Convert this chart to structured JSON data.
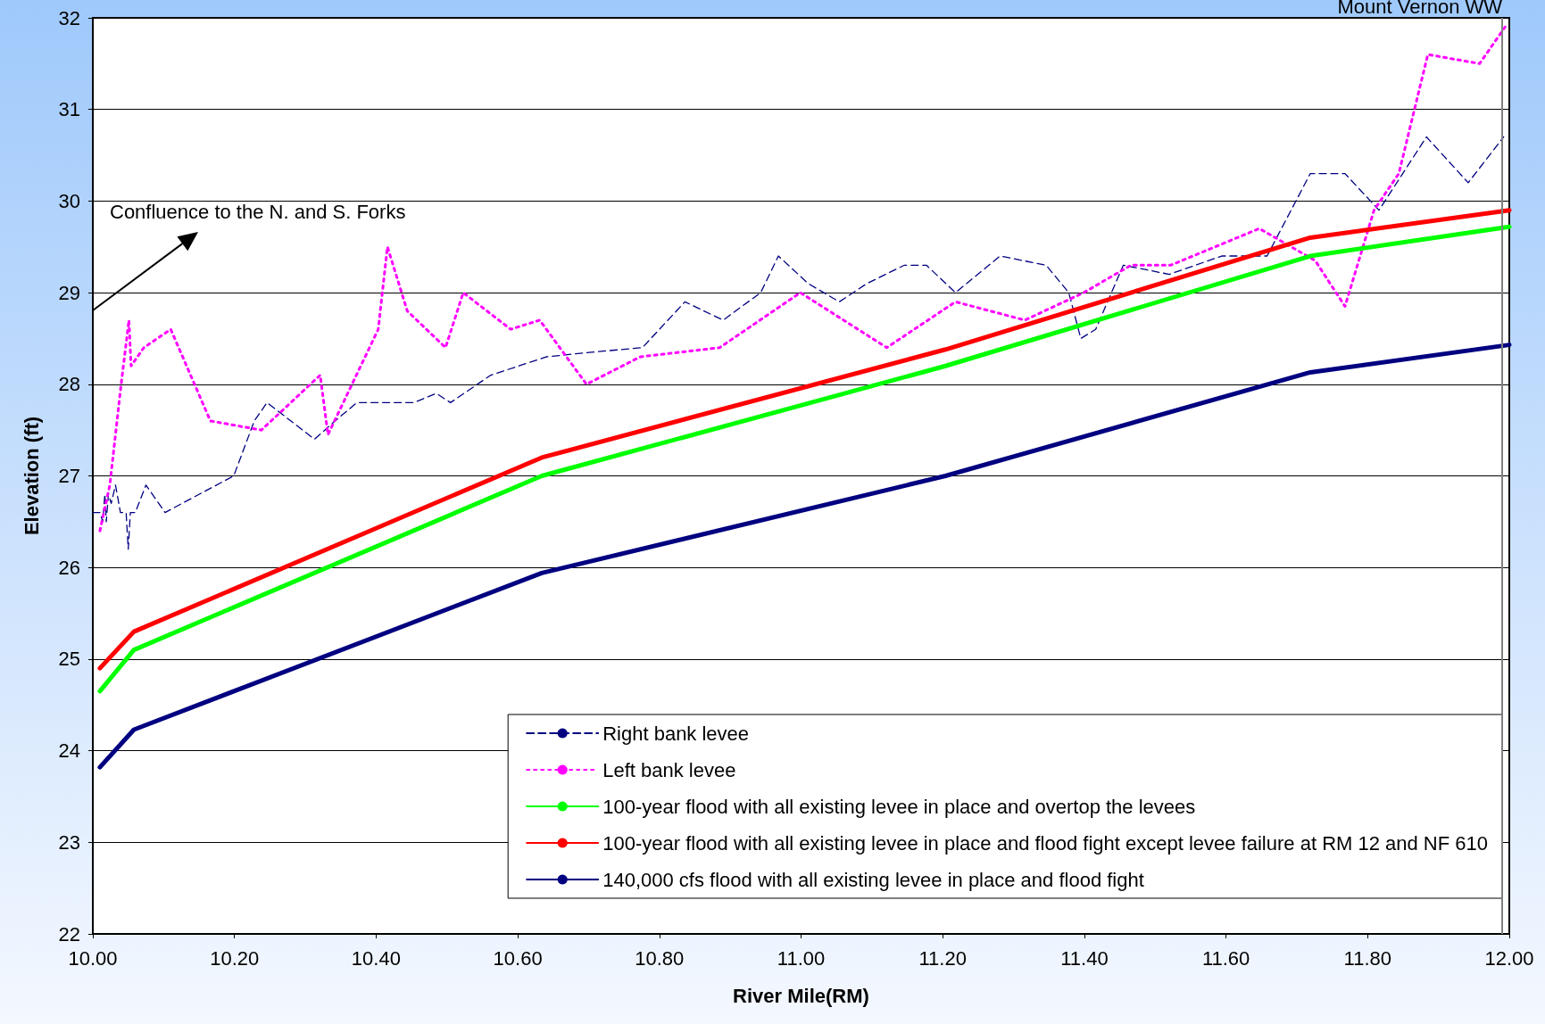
{
  "chart_data": {
    "type": "line",
    "xlabel": "River Mile(RM)",
    "ylabel": "Elevation (ft)",
    "xlim": [
      10,
      12
    ],
    "xticks": [
      {
        "value": 10,
        "label": "10.00"
      },
      {
        "value": 10.2,
        "label": "10.20"
      },
      {
        "value": 10.4,
        "label": "10.40"
      },
      {
        "value": 10.6,
        "label": "10.60"
      },
      {
        "value": 10.8,
        "label": "10.80"
      },
      {
        "value": 11,
        "label": "11.00"
      },
      {
        "value": 11.2,
        "label": "11.20"
      },
      {
        "value": 11.4,
        "label": "11.40"
      },
      {
        "value": 11.6,
        "label": "11.60"
      },
      {
        "value": 11.8,
        "label": "11.80"
      },
      {
        "value": 12,
        "label": "12.00"
      }
    ],
    "ylim": [
      22,
      32
    ],
    "yticks": [
      22,
      23,
      24,
      25,
      26,
      27,
      28,
      29,
      30,
      31,
      32
    ],
    "grid": "y",
    "legend": "bottom right",
    "marker": "none",
    "annotations": [
      "Confluence to the N. and S. Forks"
    ],
    "ref_lines": [
      {
        "axis": "x",
        "value": 11.99,
        "label": "Mount Vernon WW",
        "color": "#808080"
      }
    ],
    "series": [
      {
        "name": "Right bank levee",
        "color": "#000080",
        "line_style": "dashed",
        "x": [
          10.0,
          10.01,
          10.014,
          10.017,
          10.019,
          10.022,
          10.026,
          10.032,
          10.039,
          10.047,
          10.05,
          10.053,
          10.06,
          10.075,
          10.102,
          10.199,
          10.228,
          10.246,
          10.313,
          10.342,
          10.373,
          10.453,
          10.485,
          10.505,
          10.562,
          10.641,
          10.704,
          10.776,
          10.836,
          10.89,
          10.943,
          10.968,
          11.01,
          11.054,
          11.093,
          11.146,
          11.177,
          11.218,
          11.281,
          11.346,
          11.378,
          11.395,
          11.416,
          11.455,
          11.52,
          11.594,
          11.658,
          11.719,
          11.768,
          11.816,
          11.883,
          11.942,
          11.992
        ],
        "values": [
          26.6,
          26.6,
          26.5,
          26.8,
          26.5,
          26.8,
          26.7,
          26.9,
          26.6,
          26.6,
          26.2,
          26.6,
          26.6,
          26.9,
          26.6,
          27.0,
          27.6,
          27.8,
          27.4,
          27.6,
          27.8,
          27.8,
          27.9,
          27.8,
          28.1,
          28.3,
          28.35,
          28.4,
          28.9,
          28.7,
          29.0,
          29.4,
          29.1,
          28.9,
          29.1,
          29.3,
          29.3,
          29.0,
          29.4,
          29.3,
          29.0,
          28.5,
          28.6,
          29.3,
          29.2,
          29.4,
          29.4,
          30.3,
          30.3,
          29.9,
          30.7,
          30.2,
          30.7
        ]
      },
      {
        "name": "Left bank levee",
        "color": "#ff00ff",
        "line_style": "dotted",
        "x": [
          10.01,
          10.024,
          10.04,
          10.051,
          10.054,
          10.072,
          10.11,
          10.166,
          10.238,
          10.321,
          10.332,
          10.403,
          10.416,
          10.444,
          10.498,
          10.523,
          10.59,
          10.631,
          10.697,
          10.773,
          10.885,
          10.999,
          11.121,
          11.218,
          11.316,
          11.399,
          11.466,
          11.522,
          11.647,
          11.726,
          11.768,
          11.809,
          11.844,
          11.885,
          11.958,
          11.994
        ],
        "values": [
          26.4,
          26.9,
          28.0,
          28.7,
          28.2,
          28.4,
          28.6,
          27.6,
          27.5,
          28.1,
          27.45,
          28.6,
          29.5,
          28.8,
          28.4,
          29.0,
          28.6,
          28.7,
          28.0,
          28.3,
          28.4,
          29.0,
          28.4,
          28.9,
          28.7,
          29.0,
          29.3,
          29.3,
          29.7,
          29.35,
          28.85,
          29.9,
          30.3,
          31.6,
          31.5,
          31.9
        ]
      },
      {
        "name": "100-year flood with all existing levee in place and overtop the levees",
        "color": "#00ff00",
        "line_style": "solid",
        "x": [
          10.01,
          10.058,
          10.634,
          11.204,
          11.719,
          12.0
        ],
        "values": [
          24.65,
          25.1,
          27.0,
          28.2,
          29.4,
          29.72
        ]
      },
      {
        "name": "100-year flood with all existing levee in place and flood fight except levee failure at RM 12 and NF 610",
        "color": "#ff0000",
        "line_style": "solid",
        "x": [
          10.01,
          10.058,
          10.634,
          11.204,
          11.719,
          12.0
        ],
        "values": [
          24.9,
          25.3,
          27.2,
          28.38,
          29.6,
          29.9
        ]
      },
      {
        "name": "140,000 cfs flood with all existing levee in place and flood fight",
        "color": "#000080",
        "line_style": "solid",
        "x": [
          10.01,
          10.058,
          10.634,
          11.204,
          11.719,
          12.0
        ],
        "values": [
          23.82,
          24.23,
          25.94,
          27.0,
          28.13,
          28.43
        ]
      }
    ]
  }
}
